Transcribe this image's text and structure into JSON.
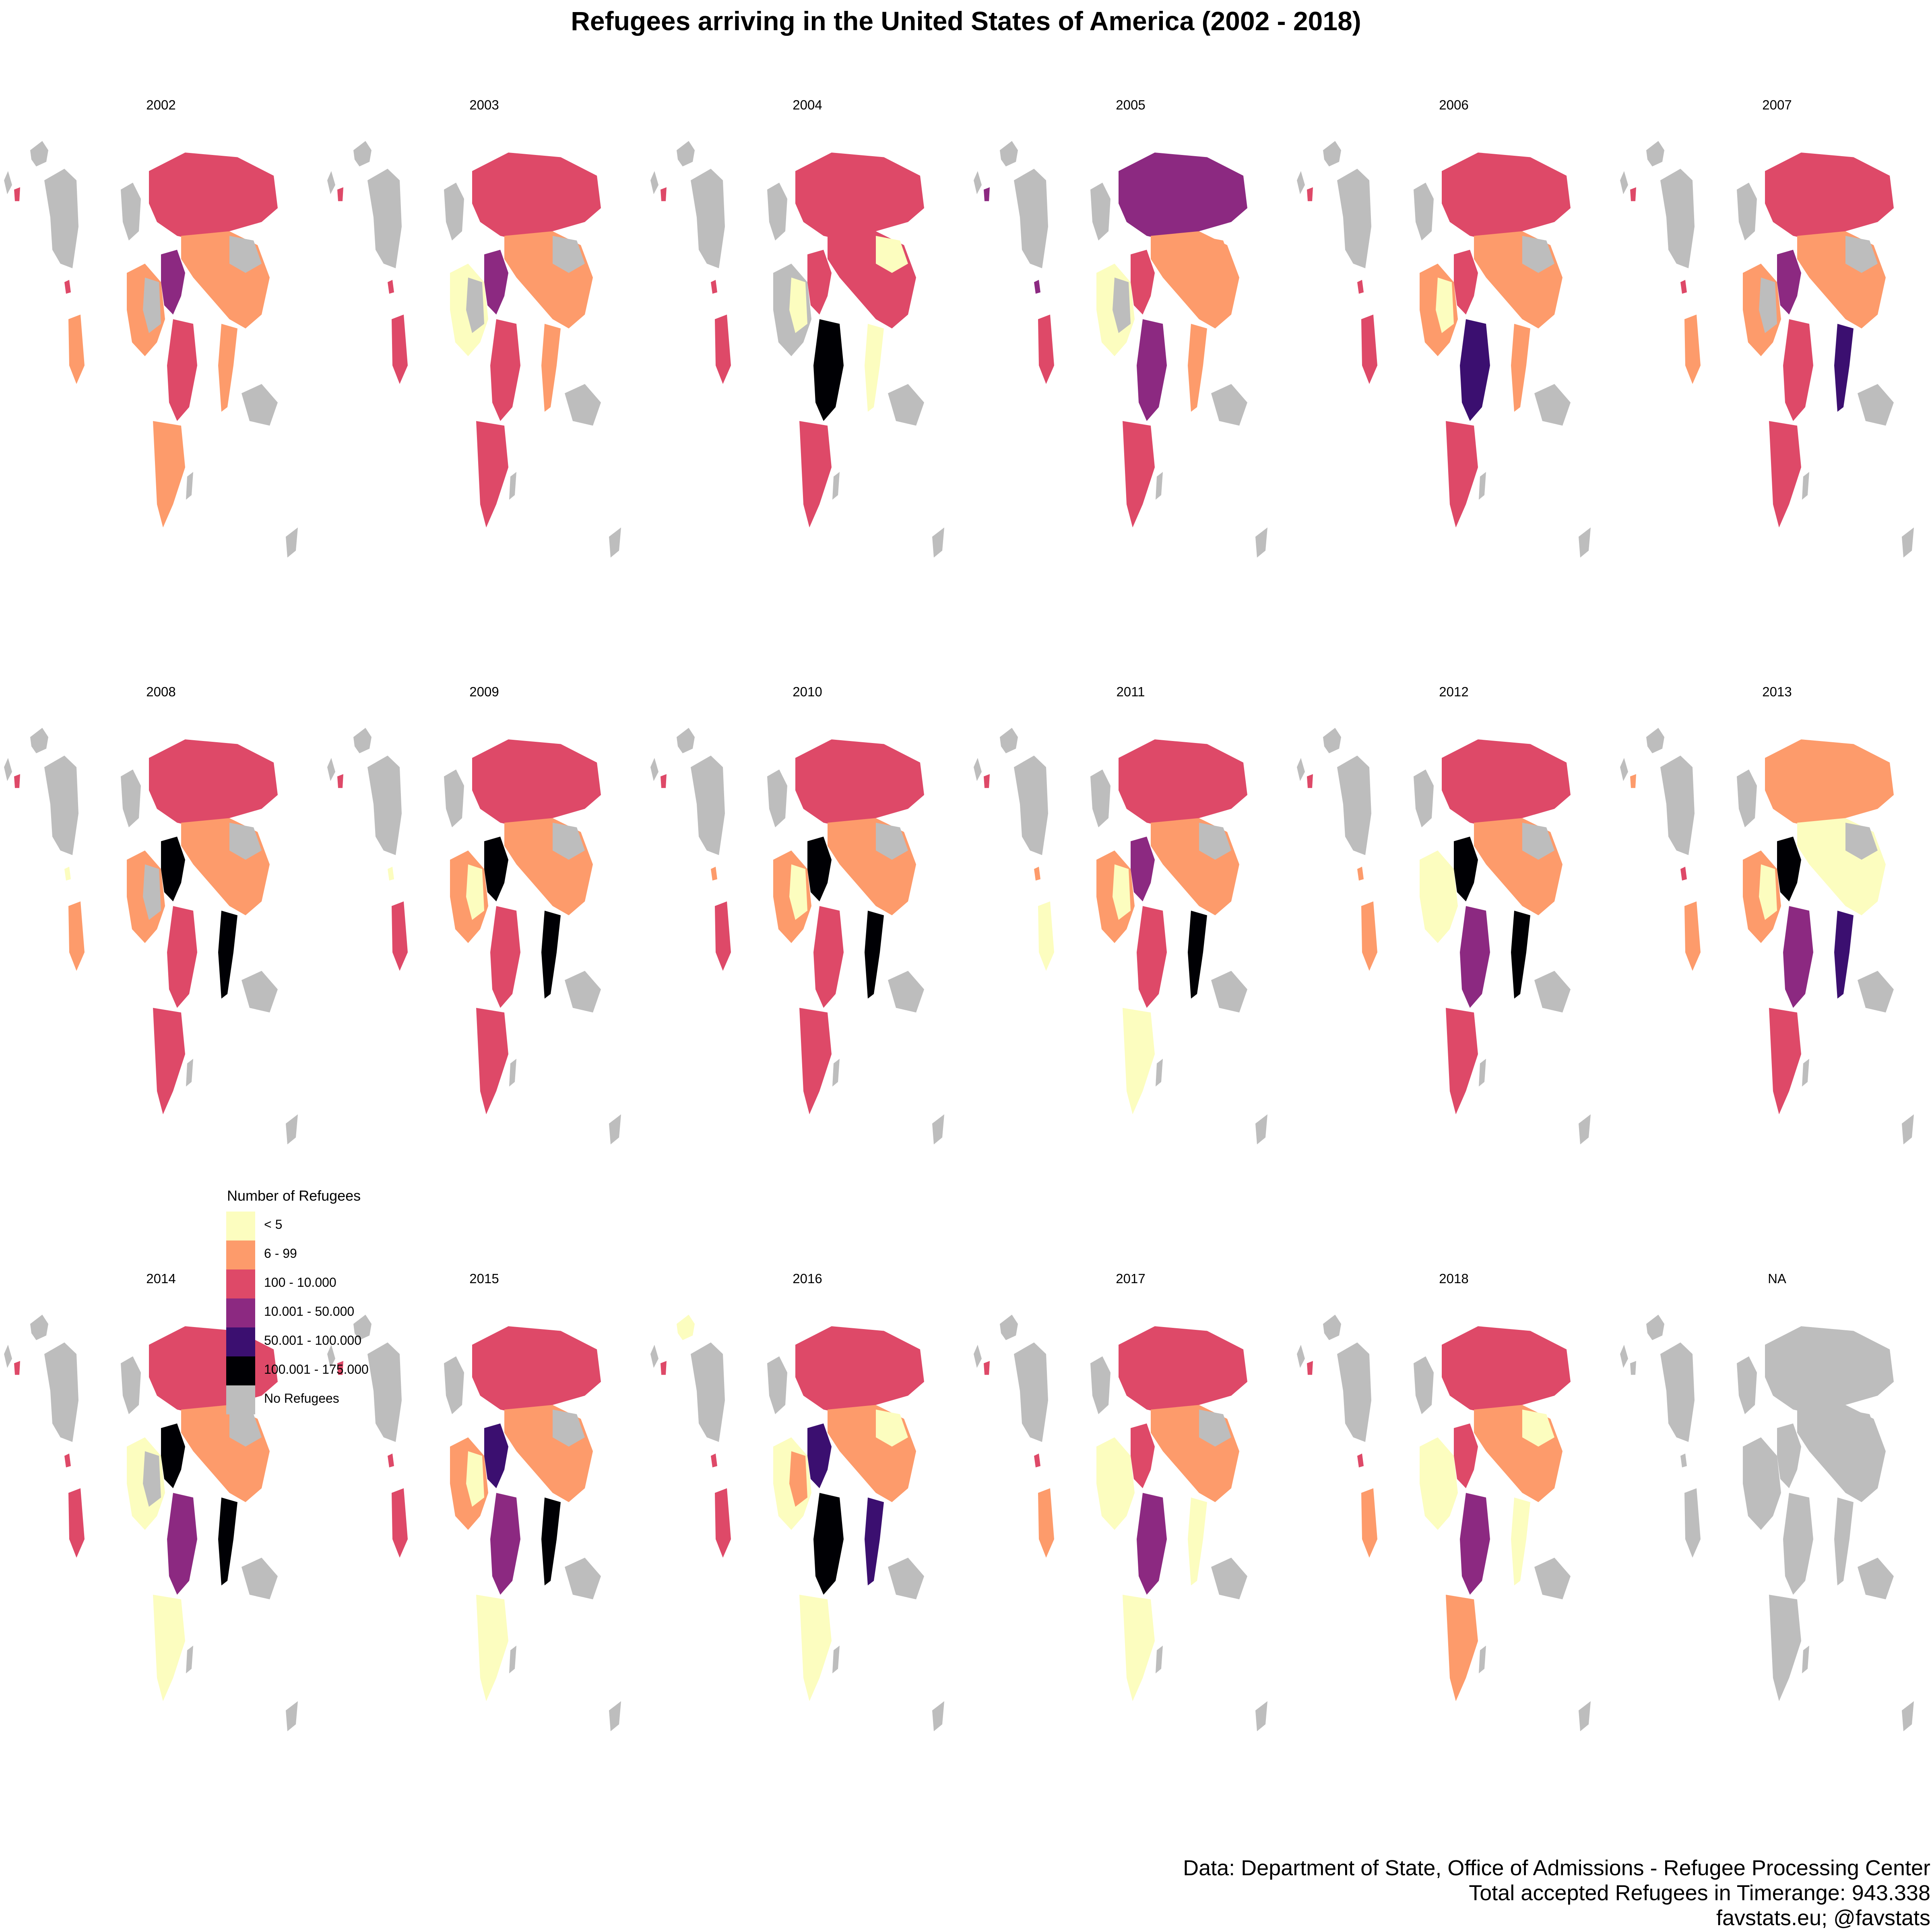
{
  "title": "Refugees arriving in the United States of America (2002 - 2018)",
  "colors": {
    "none": "#bdbdbd",
    "c1": "#fcfdbf",
    "c2": "#fd9b6b",
    "c3": "#de4968",
    "c4": "#8c2981",
    "c5": "#3b0f70",
    "c6": "#000004"
  },
  "legend": {
    "title": "Number of Refugees",
    "items": [
      {
        "key": "c1",
        "label": "< 5"
      },
      {
        "key": "c2",
        "label": "6 - 99"
      },
      {
        "key": "c3",
        "label": "100 - 10.000"
      },
      {
        "key": "c4",
        "label": "10.001 - 50.000"
      },
      {
        "key": "c5",
        "label": "50.001 - 100.000"
      },
      {
        "key": "c6",
        "label": "100.001 - 175.000"
      },
      {
        "key": "none",
        "label": "No Refugees"
      }
    ]
  },
  "panels": [
    {
      "label": "2002",
      "regions": {
        "green": "none",
        "rus": "c3",
        "cAsia": "c2",
        "china": "none",
        "mideast": "c4",
        "seAsia": "c2",
        "westAf": "c2",
        "sahel": "none",
        "eastAf": "c3",
        "southAf": "c2",
        "cuba": "c3",
        "colombia": "c2",
        "island": "c3"
      }
    },
    {
      "label": "2003",
      "regions": {
        "green": "none",
        "rus": "c3",
        "cAsia": "c2",
        "china": "none",
        "mideast": "c4",
        "seAsia": "c2",
        "westAf": "c1",
        "sahel": "none",
        "eastAf": "c3",
        "southAf": "c3",
        "cuba": "c3",
        "colombia": "c3",
        "island": "c3"
      }
    },
    {
      "label": "2004",
      "regions": {
        "green": "none",
        "rus": "c3",
        "cAsia": "c3",
        "china": "c1",
        "mideast": "c3",
        "seAsia": "c1",
        "westAf": "none",
        "sahel": "c1",
        "eastAf": "c6",
        "southAf": "c3",
        "cuba": "c3",
        "colombia": "c3",
        "island": "c3"
      }
    },
    {
      "label": "2005",
      "regions": {
        "green": "none",
        "rus": "c4",
        "cAsia": "c2",
        "china": "c2",
        "mideast": "c3",
        "seAsia": "c2",
        "westAf": "c1",
        "sahel": "none",
        "eastAf": "c4",
        "southAf": "c3",
        "cuba": "c4",
        "colombia": "c3",
        "island": "c4"
      }
    },
    {
      "label": "2006",
      "regions": {
        "green": "none",
        "rus": "c3",
        "cAsia": "c2",
        "china": "none",
        "mideast": "c3",
        "seAsia": "c2",
        "westAf": "c2",
        "sahel": "c1",
        "eastAf": "c5",
        "southAf": "c3",
        "cuba": "c3",
        "colombia": "c3",
        "island": "c3"
      }
    },
    {
      "label": "2007",
      "regions": {
        "green": "none",
        "rus": "c3",
        "cAsia": "c2",
        "china": "none",
        "mideast": "c4",
        "seAsia": "c5",
        "westAf": "c2",
        "sahel": "none",
        "eastAf": "c3",
        "southAf": "c3",
        "cuba": "c3",
        "colombia": "c2",
        "island": "c3"
      }
    },
    {
      "label": "2008",
      "regions": {
        "green": "none",
        "rus": "c3",
        "cAsia": "c2",
        "china": "none",
        "mideast": "c6",
        "seAsia": "c6",
        "westAf": "c2",
        "sahel": "none",
        "eastAf": "c3",
        "southAf": "c3",
        "cuba": "c1",
        "colombia": "c2",
        "island": "c3"
      }
    },
    {
      "label": "2009",
      "regions": {
        "green": "none",
        "rus": "c3",
        "cAsia": "c2",
        "china": "none",
        "mideast": "c6",
        "seAsia": "c6",
        "westAf": "c2",
        "sahel": "c1",
        "eastAf": "c3",
        "southAf": "c3",
        "cuba": "c1",
        "colombia": "c3",
        "island": "c3"
      }
    },
    {
      "label": "2010",
      "regions": {
        "green": "none",
        "rus": "c3",
        "cAsia": "c2",
        "china": "none",
        "mideast": "c6",
        "seAsia": "c6",
        "westAf": "c2",
        "sahel": "c1",
        "eastAf": "c3",
        "southAf": "c3",
        "cuba": "c2",
        "colombia": "c3",
        "island": "c3"
      }
    },
    {
      "label": "2011",
      "regions": {
        "green": "none",
        "rus": "c3",
        "cAsia": "c2",
        "china": "none",
        "mideast": "c4",
        "seAsia": "c6",
        "westAf": "c2",
        "sahel": "c1",
        "eastAf": "c3",
        "southAf": "c1",
        "cuba": "c2",
        "colombia": "c1",
        "island": "c3"
      }
    },
    {
      "label": "2012",
      "regions": {
        "green": "none",
        "rus": "c3",
        "cAsia": "c2",
        "china": "none",
        "mideast": "c6",
        "seAsia": "c6",
        "westAf": "c1",
        "sahel": "c1",
        "eastAf": "c4",
        "southAf": "c3",
        "cuba": "c2",
        "colombia": "c2",
        "island": "c3"
      }
    },
    {
      "label": "2013",
      "regions": {
        "green": "none",
        "rus": "c2",
        "cAsia": "c1",
        "china": "none",
        "mideast": "c6",
        "seAsia": "c5",
        "westAf": "c2",
        "sahel": "c1",
        "eastAf": "c4",
        "southAf": "c3",
        "cuba": "c3",
        "colombia": "c2",
        "island": "c2"
      }
    },
    {
      "label": "2014",
      "regions": {
        "green": "none",
        "rus": "c3",
        "cAsia": "c2",
        "china": "none",
        "mideast": "c6",
        "seAsia": "c6",
        "westAf": "c1",
        "sahel": "none",
        "eastAf": "c4",
        "southAf": "c1",
        "cuba": "c3",
        "colombia": "c3",
        "island": "c3"
      }
    },
    {
      "label": "2015",
      "regions": {
        "green": "none",
        "rus": "c3",
        "cAsia": "c2",
        "china": "none",
        "mideast": "c5",
        "seAsia": "c6",
        "westAf": "c2",
        "sahel": "c1",
        "eastAf": "c4",
        "southAf": "c1",
        "cuba": "c3",
        "colombia": "c3",
        "island": "c3"
      }
    },
    {
      "label": "2016",
      "regions": {
        "green": "c1",
        "rus": "c3",
        "cAsia": "c2",
        "china": "c1",
        "mideast": "c5",
        "seAsia": "c5",
        "westAf": "c1",
        "sahel": "c2",
        "eastAf": "c6",
        "southAf": "c1",
        "cuba": "c3",
        "colombia": "c3",
        "island": "c3"
      }
    },
    {
      "label": "2017",
      "regions": {
        "green": "none",
        "rus": "c3",
        "cAsia": "c2",
        "china": "none",
        "mideast": "c3",
        "seAsia": "c1",
        "westAf": "c1",
        "sahel": "c1",
        "eastAf": "c4",
        "southAf": "c1",
        "cuba": "c3",
        "colombia": "c2",
        "island": "c3"
      }
    },
    {
      "label": "2018",
      "regions": {
        "green": "none",
        "rus": "c3",
        "cAsia": "c2",
        "china": "c1",
        "mideast": "c3",
        "seAsia": "c1",
        "westAf": "c1",
        "sahel": "c1",
        "eastAf": "c4",
        "southAf": "c2",
        "cuba": "c3",
        "colombia": "c2",
        "island": "c3"
      }
    },
    {
      "label": "NA",
      "regions": {
        "green": "none",
        "rus": "none",
        "cAsia": "none",
        "china": "none",
        "mideast": "none",
        "seAsia": "none",
        "westAf": "none",
        "sahel": "none",
        "eastAf": "none",
        "southAf": "none",
        "cuba": "none",
        "colombia": "none",
        "island": "none"
      }
    }
  ],
  "credits": {
    "line1": "Data: Department of State, Office of Admissions - Refugee Processing Center",
    "line2": "Total accepted Refugees in Timerange: 943.338",
    "line3": "favstats.eu; @favstats"
  }
}
